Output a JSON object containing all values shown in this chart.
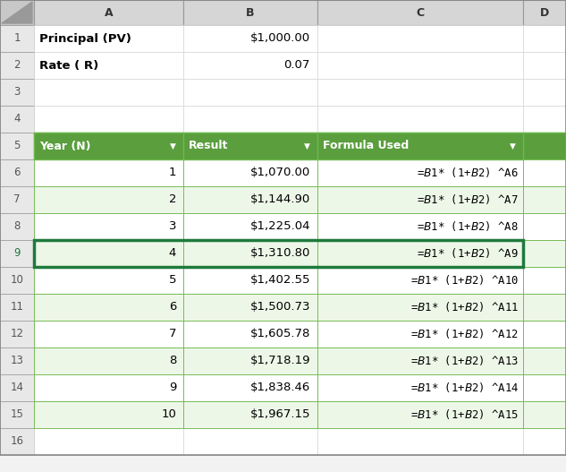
{
  "col_labels": [
    "A",
    "B",
    "C",
    "D"
  ],
  "header_labels": [
    "Year (N)",
    "Result",
    "Formula Used"
  ],
  "info_rows": [
    {
      "label": "Principal (PV)",
      "value": "$1,000.00"
    },
    {
      "label": "Rate ( R)",
      "value": "0.07"
    }
  ],
  "data_rows": [
    {
      "year": "1",
      "result": "$1,070.00",
      "formula": "=$B$1* (1+$B$2) ^A6"
    },
    {
      "year": "2",
      "result": "$1,144.90",
      "formula": "=$B$1* (1+$B$2) ^A7"
    },
    {
      "year": "3",
      "result": "$1,225.04",
      "formula": "=$B$1* (1+$B$2) ^A8"
    },
    {
      "year": "4",
      "result": "$1,310.80",
      "formula": "=$B$1* (1+$B$2) ^A9"
    },
    {
      "year": "5",
      "result": "$1,402.55",
      "formula": "=$B$1* (1+$B$2) ^A10"
    },
    {
      "year": "6",
      "result": "$1,500.73",
      "formula": "=$B$1* (1+$B$2) ^A11"
    },
    {
      "year": "7",
      "result": "$1,605.78",
      "formula": "=$B$1* (1+$B$2) ^A12"
    },
    {
      "year": "8",
      "result": "$1,718.19",
      "formula": "=$B$1* (1+$B$2) ^A13"
    },
    {
      "year": "9",
      "result": "$1,838.46",
      "formula": "=$B$1* (1+$B$2) ^A14"
    },
    {
      "year": "10",
      "result": "$1,967.15",
      "formula": "=$B$1* (1+$B$2) ^A15"
    }
  ],
  "header_bg": "#5a9e3e",
  "header_text": "#ffffff",
  "row_bg_white": "#ffffff",
  "row_bg_green": "#edf7e8",
  "grid_color": "#6db84a",
  "col_header_bg": "#d6d6d6",
  "row_num_bg": "#e8e8e8",
  "corner_bg": "#c8c8c8",
  "body_bg": "#ffffff",
  "outer_bg": "#f2f2f2",
  "selected_border": "#1e7a3c",
  "cell_text": "#000000",
  "header_text_color": "#ffffff",
  "fig_width": 6.33,
  "fig_height": 5.27,
  "dpi": 100
}
